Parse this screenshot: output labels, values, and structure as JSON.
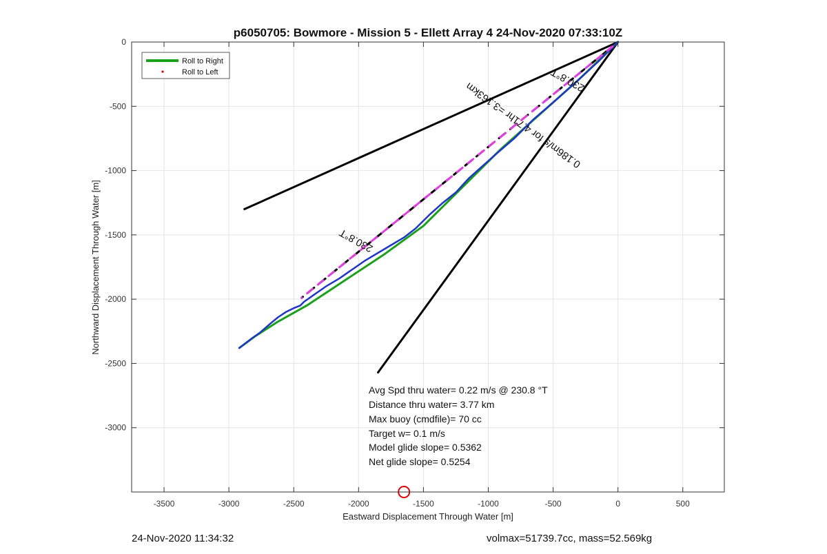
{
  "chart_data": {
    "type": "line",
    "title": "p6050705: Bowmore - Mission 5 - Ellett Array 4 24-Nov-2020 07:33:10Z",
    "xlabel": "Eastward Displacement Through Water [m]",
    "ylabel": "Northward Displacement Through Water [m]",
    "xlim": [
      -3750,
      820
    ],
    "ylim": [
      -3500,
      0
    ],
    "x_ticks": [
      -3500,
      -3000,
      -2500,
      -2000,
      -1500,
      -1000,
      -500,
      0,
      500
    ],
    "y_ticks": [
      0,
      -500,
      -1000,
      -1500,
      -2000,
      -2500,
      -3000
    ],
    "x_tick_labels": [
      "-3500",
      "-3000",
      "-2500",
      "-2000",
      "-1500",
      "-1000",
      "-500",
      "0",
      "500"
    ],
    "y_tick_labels": [
      "0",
      "-500",
      "-1000",
      "-1500",
      "-2000",
      "-2500",
      "-3000"
    ],
    "grid": true,
    "legend_position": "top-left",
    "legend": [
      {
        "label": "Roll to Right",
        "color": "#1aa01a",
        "style": "line"
      },
      {
        "label": "Roll to Left",
        "color": "#e00000",
        "style": "dot"
      }
    ],
    "series": [
      {
        "name": "Roll to Right",
        "color": "#1aa01a",
        "x": [
          0,
          -300,
          -600,
          -900,
          -1200,
          -1500,
          -1800,
          -2100,
          -2400,
          -2630,
          -2800,
          -2920
        ],
        "y": [
          0,
          -290,
          -560,
          -830,
          -1130,
          -1430,
          -1650,
          -1850,
          -2050,
          -2180,
          -2290,
          -2380
        ]
      },
      {
        "name": "",
        "color": "#1f35c8",
        "x": [
          0,
          -150,
          -300,
          -500,
          -650,
          -800,
          -950,
          -1050,
          -1150,
          -1250,
          -1350,
          -1450,
          -1560,
          -1650,
          -1800,
          -1950,
          -2050,
          -2150,
          -2250,
          -2350,
          -2420,
          -2450,
          -2500,
          -2560,
          -2620,
          -2680,
          -2760,
          -2830,
          -2920
        ],
        "y": [
          0,
          -150,
          -290,
          -470,
          -600,
          -750,
          -880,
          -970,
          -1060,
          -1170,
          -1250,
          -1340,
          -1450,
          -1520,
          -1610,
          -1700,
          -1770,
          -1840,
          -1900,
          -1970,
          -2020,
          -2050,
          -2070,
          -2100,
          -2140,
          -2190,
          -2260,
          -2310,
          -2380
        ]
      },
      {
        "name": "",
        "color": "#e040e0",
        "style": "dashed",
        "x": [
          0,
          -2440
        ],
        "y": [
          0,
          -1990
        ]
      }
    ],
    "cone_lines": [
      {
        "x": [
          0,
          -2880
        ],
        "y": [
          0,
          -1300
        ],
        "color": "#000000"
      },
      {
        "x": [
          0,
          -1850
        ],
        "y": [
          0,
          -2570
        ],
        "color": "#000000"
      },
      {
        "x": [
          0,
          -2440
        ],
        "y": [
          0,
          -1990
        ],
        "color": "#000000",
        "style": "dashed"
      }
    ],
    "rotated_labels": [
      "230.8°T",
      "230.8°T",
      "0.186m/s for 4.71hr =3.163km"
    ],
    "annotations": [
      "Avg Spd thru water=  0.22 m/s @ 230.8 °T",
      "Distance thru water=  3.77 km",
      "Max buoy (cmdfile)= 70 cc",
      "Target w= 0.1 m/s",
      "Model glide slope= 0.5362",
      "Net glide slope= 0.5254"
    ],
    "marker": {
      "x": -1650,
      "y": -3500,
      "color": "#e00000",
      "shape": "circle"
    }
  },
  "footer": {
    "left": "24-Nov-2020 11:34:32",
    "right": "volmax=51739.7cc, mass=52.569kg"
  }
}
